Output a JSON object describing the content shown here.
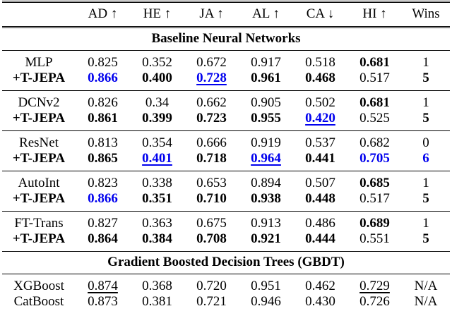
{
  "colors": {
    "highlight": "#0000EE",
    "text": "#000000",
    "rule": "#000000",
    "background": "#ffffff"
  },
  "table": {
    "columns": [
      "",
      "AD ↑",
      "HE ↑",
      "JA ↑",
      "AL ↑",
      "CA ↓",
      "HI ↑",
      "Wins"
    ],
    "sections": [
      {
        "title": "Baseline Neural Networks",
        "groups": [
          {
            "rows": [
              {
                "model": "MLP",
                "bold": false,
                "values": [
                  {
                    "text": "0.825",
                    "bold": false,
                    "blue": false,
                    "underline": false
                  },
                  {
                    "text": "0.352",
                    "bold": false,
                    "blue": false,
                    "underline": false
                  },
                  {
                    "text": "0.672",
                    "bold": false,
                    "blue": false,
                    "underline": false
                  },
                  {
                    "text": "0.917",
                    "bold": false,
                    "blue": false,
                    "underline": false
                  },
                  {
                    "text": "0.518",
                    "bold": false,
                    "blue": false,
                    "underline": false
                  },
                  {
                    "text": "0.681",
                    "bold": true,
                    "blue": false,
                    "underline": false
                  },
                  {
                    "text": "1",
                    "bold": false,
                    "blue": false,
                    "underline": false
                  }
                ]
              },
              {
                "model": "+T-JEPA",
                "bold": true,
                "values": [
                  {
                    "text": "0.866",
                    "bold": true,
                    "blue": true,
                    "underline": false
                  },
                  {
                    "text": "0.400",
                    "bold": true,
                    "blue": false,
                    "underline": false
                  },
                  {
                    "text": "0.728",
                    "bold": true,
                    "blue": true,
                    "underline": true
                  },
                  {
                    "text": "0.961",
                    "bold": true,
                    "blue": false,
                    "underline": false
                  },
                  {
                    "text": "0.468",
                    "bold": true,
                    "blue": false,
                    "underline": false
                  },
                  {
                    "text": "0.517",
                    "bold": false,
                    "blue": false,
                    "underline": false
                  },
                  {
                    "text": "5",
                    "bold": true,
                    "blue": false,
                    "underline": false
                  }
                ]
              }
            ]
          },
          {
            "rows": [
              {
                "model": "DCNv2",
                "bold": false,
                "values": [
                  {
                    "text": "0.826",
                    "bold": false,
                    "blue": false,
                    "underline": false
                  },
                  {
                    "text": "0.34",
                    "bold": false,
                    "blue": false,
                    "underline": false
                  },
                  {
                    "text": "0.662",
                    "bold": false,
                    "blue": false,
                    "underline": false
                  },
                  {
                    "text": "0.905",
                    "bold": false,
                    "blue": false,
                    "underline": false
                  },
                  {
                    "text": "0.502",
                    "bold": false,
                    "blue": false,
                    "underline": false
                  },
                  {
                    "text": "0.681",
                    "bold": true,
                    "blue": false,
                    "underline": false
                  },
                  {
                    "text": "1",
                    "bold": false,
                    "blue": false,
                    "underline": false
                  }
                ]
              },
              {
                "model": "+T-JEPA",
                "bold": true,
                "values": [
                  {
                    "text": "0.861",
                    "bold": true,
                    "blue": false,
                    "underline": false
                  },
                  {
                    "text": "0.399",
                    "bold": true,
                    "blue": false,
                    "underline": false
                  },
                  {
                    "text": "0.723",
                    "bold": true,
                    "blue": false,
                    "underline": false
                  },
                  {
                    "text": "0.955",
                    "bold": true,
                    "blue": false,
                    "underline": false
                  },
                  {
                    "text": "0.420",
                    "bold": true,
                    "blue": true,
                    "underline": true
                  },
                  {
                    "text": "0.525",
                    "bold": false,
                    "blue": false,
                    "underline": false
                  },
                  {
                    "text": "5",
                    "bold": true,
                    "blue": false,
                    "underline": false
                  }
                ]
              }
            ]
          },
          {
            "rows": [
              {
                "model": "ResNet",
                "bold": false,
                "values": [
                  {
                    "text": "0.813",
                    "bold": false,
                    "blue": false,
                    "underline": false
                  },
                  {
                    "text": "0.354",
                    "bold": false,
                    "blue": false,
                    "underline": false
                  },
                  {
                    "text": "0.666",
                    "bold": false,
                    "blue": false,
                    "underline": false
                  },
                  {
                    "text": "0.919",
                    "bold": false,
                    "blue": false,
                    "underline": false
                  },
                  {
                    "text": "0.537",
                    "bold": false,
                    "blue": false,
                    "underline": false
                  },
                  {
                    "text": "0.682",
                    "bold": false,
                    "blue": false,
                    "underline": false
                  },
                  {
                    "text": "0",
                    "bold": false,
                    "blue": false,
                    "underline": false
                  }
                ]
              },
              {
                "model": "+T-JEPA",
                "bold": true,
                "values": [
                  {
                    "text": "0.865",
                    "bold": true,
                    "blue": false,
                    "underline": false
                  },
                  {
                    "text": "0.401",
                    "bold": true,
                    "blue": true,
                    "underline": true
                  },
                  {
                    "text": "0.718",
                    "bold": true,
                    "blue": false,
                    "underline": false
                  },
                  {
                    "text": "0.964",
                    "bold": true,
                    "blue": true,
                    "underline": true
                  },
                  {
                    "text": "0.441",
                    "bold": true,
                    "blue": false,
                    "underline": false
                  },
                  {
                    "text": "0.705",
                    "bold": true,
                    "blue": true,
                    "underline": false
                  },
                  {
                    "text": "6",
                    "bold": true,
                    "blue": true,
                    "underline": false
                  }
                ]
              }
            ]
          },
          {
            "rows": [
              {
                "model": "AutoInt",
                "bold": false,
                "values": [
                  {
                    "text": "0.823",
                    "bold": false,
                    "blue": false,
                    "underline": false
                  },
                  {
                    "text": "0.338",
                    "bold": false,
                    "blue": false,
                    "underline": false
                  },
                  {
                    "text": "0.653",
                    "bold": false,
                    "blue": false,
                    "underline": false
                  },
                  {
                    "text": "0.894",
                    "bold": false,
                    "blue": false,
                    "underline": false
                  },
                  {
                    "text": "0.507",
                    "bold": false,
                    "blue": false,
                    "underline": false
                  },
                  {
                    "text": "0.685",
                    "bold": true,
                    "blue": false,
                    "underline": false
                  },
                  {
                    "text": "1",
                    "bold": false,
                    "blue": false,
                    "underline": false
                  }
                ]
              },
              {
                "model": "+T-JEPA",
                "bold": true,
                "values": [
                  {
                    "text": "0.866",
                    "bold": true,
                    "blue": true,
                    "underline": false
                  },
                  {
                    "text": "0.351",
                    "bold": true,
                    "blue": false,
                    "underline": false
                  },
                  {
                    "text": "0.710",
                    "bold": true,
                    "blue": false,
                    "underline": false
                  },
                  {
                    "text": "0.938",
                    "bold": true,
                    "blue": false,
                    "underline": false
                  },
                  {
                    "text": "0.448",
                    "bold": true,
                    "blue": false,
                    "underline": false
                  },
                  {
                    "text": "0.517",
                    "bold": false,
                    "blue": false,
                    "underline": false
                  },
                  {
                    "text": "5",
                    "bold": true,
                    "blue": false,
                    "underline": false
                  }
                ]
              }
            ]
          },
          {
            "rows": [
              {
                "model": "FT-Trans",
                "bold": false,
                "values": [
                  {
                    "text": "0.827",
                    "bold": false,
                    "blue": false,
                    "underline": false
                  },
                  {
                    "text": "0.363",
                    "bold": false,
                    "blue": false,
                    "underline": false
                  },
                  {
                    "text": "0.675",
                    "bold": false,
                    "blue": false,
                    "underline": false
                  },
                  {
                    "text": "0.913",
                    "bold": false,
                    "blue": false,
                    "underline": false
                  },
                  {
                    "text": "0.486",
                    "bold": false,
                    "blue": false,
                    "underline": false
                  },
                  {
                    "text": "0.689",
                    "bold": true,
                    "blue": false,
                    "underline": false
                  },
                  {
                    "text": "1",
                    "bold": false,
                    "blue": false,
                    "underline": false
                  }
                ]
              },
              {
                "model": "+T-JEPA",
                "bold": true,
                "values": [
                  {
                    "text": "0.864",
                    "bold": true,
                    "blue": false,
                    "underline": false
                  },
                  {
                    "text": "0.384",
                    "bold": true,
                    "blue": false,
                    "underline": false
                  },
                  {
                    "text": "0.708",
                    "bold": true,
                    "blue": false,
                    "underline": false
                  },
                  {
                    "text": "0.921",
                    "bold": true,
                    "blue": false,
                    "underline": false
                  },
                  {
                    "text": "0.444",
                    "bold": true,
                    "blue": false,
                    "underline": false
                  },
                  {
                    "text": "0.551",
                    "bold": false,
                    "blue": false,
                    "underline": false
                  },
                  {
                    "text": "5",
                    "bold": true,
                    "blue": false,
                    "underline": false
                  }
                ]
              }
            ]
          }
        ]
      },
      {
        "title": "Gradient Boosted Decision Trees (GBDT)",
        "groups": [
          {
            "rows": [
              {
                "model": "XGBoost",
                "bold": false,
                "values": [
                  {
                    "text": "0.874",
                    "bold": false,
                    "blue": false,
                    "underline": true
                  },
                  {
                    "text": "0.368",
                    "bold": false,
                    "blue": false,
                    "underline": false
                  },
                  {
                    "text": "0.720",
                    "bold": false,
                    "blue": false,
                    "underline": false
                  },
                  {
                    "text": "0.951",
                    "bold": false,
                    "blue": false,
                    "underline": false
                  },
                  {
                    "text": "0.462",
                    "bold": false,
                    "blue": false,
                    "underline": false
                  },
                  {
                    "text": "0.729",
                    "bold": false,
                    "blue": false,
                    "underline": true
                  },
                  {
                    "text": "N/A",
                    "bold": false,
                    "blue": false,
                    "underline": false
                  }
                ]
              },
              {
                "model": "CatBoost",
                "bold": false,
                "values": [
                  {
                    "text": "0.873",
                    "bold": false,
                    "blue": false,
                    "underline": false
                  },
                  {
                    "text": "0.381",
                    "bold": false,
                    "blue": false,
                    "underline": false
                  },
                  {
                    "text": "0.721",
                    "bold": false,
                    "blue": false,
                    "underline": false
                  },
                  {
                    "text": "0.946",
                    "bold": false,
                    "blue": false,
                    "underline": false
                  },
                  {
                    "text": "0.430",
                    "bold": false,
                    "blue": false,
                    "underline": false
                  },
                  {
                    "text": "0.726",
                    "bold": false,
                    "blue": false,
                    "underline": false
                  },
                  {
                    "text": "N/A",
                    "bold": false,
                    "blue": false,
                    "underline": false
                  }
                ]
              }
            ]
          }
        ]
      }
    ]
  }
}
